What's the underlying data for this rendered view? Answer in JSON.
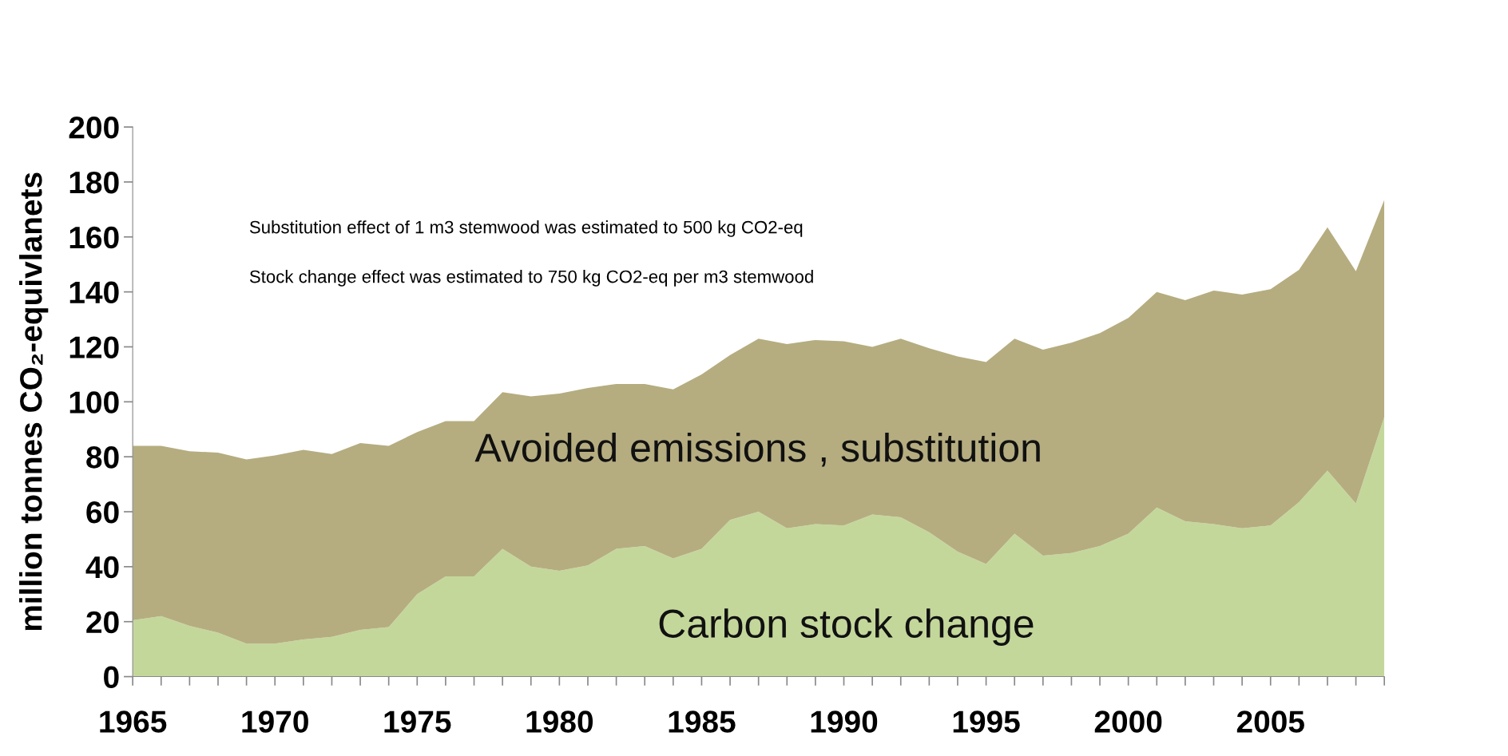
{
  "chart_data": {
    "type": "area",
    "stacked": true,
    "ylabel": "million tonnes CO₂-equivlanets",
    "annotations": [
      "Substitution effect of 1 m3 stemwood was estimated to 500 kg CO2-eq",
      "Stock change effect was estimated to 750 kg CO2-eq per m3 stemwood"
    ],
    "x": [
      1965,
      1966,
      1967,
      1968,
      1969,
      1970,
      1971,
      1972,
      1973,
      1974,
      1975,
      1976,
      1977,
      1978,
      1979,
      1980,
      1981,
      1982,
      1983,
      1984,
      1985,
      1986,
      1987,
      1988,
      1989,
      1990,
      1991,
      1992,
      1993,
      1994,
      1995,
      1996,
      1997,
      1998,
      1999,
      2000,
      2001,
      2002,
      2003,
      2004,
      2005,
      2006,
      2007,
      2008,
      2009
    ],
    "series": [
      {
        "name": "Carbon stock change",
        "color": "#c4d79b",
        "values": [
          20.5,
          22,
          18.5,
          16,
          12,
          12,
          13.5,
          14.5,
          17,
          18,
          30,
          36.5,
          36.5,
          46.5,
          40,
          38.5,
          40.5,
          46.5,
          47.5,
          43,
          46.5,
          57,
          60,
          54,
          55.5,
          55,
          59,
          58,
          52.5,
          45.5,
          41,
          52,
          44,
          45,
          47.5,
          52,
          61.5,
          56.5,
          55.5,
          54,
          55,
          63.5,
          75,
          63,
          94.5
        ]
      },
      {
        "name": "Avoided emissions , substitution",
        "color": "#b5ad80",
        "values": [
          63.5,
          62,
          63.5,
          65.5,
          67,
          68.5,
          69,
          66.5,
          68,
          66,
          59,
          56.5,
          56.5,
          57,
          62,
          64.5,
          64.5,
          60,
          59,
          61.5,
          63.5,
          60,
          63,
          67,
          67,
          67,
          61,
          65,
          67,
          71,
          73.5,
          71,
          75,
          76.5,
          77.5,
          78.5,
          78.5,
          80.5,
          85,
          85,
          86,
          84.5,
          88.5,
          84.5,
          79
        ]
      }
    ],
    "xlim": [
      1965,
      2009
    ],
    "xticks": [
      1965,
      {
        "value": 1966,
        "label": null
      },
      {
        "value": 1967,
        "label": null
      },
      {
        "value": 1968,
        "label": null
      },
      {
        "value": 1969,
        "label": null
      },
      1970,
      {
        "value": 1971,
        "label": null
      },
      {
        "value": 1972,
        "label": null
      },
      {
        "value": 1973,
        "label": null
      },
      {
        "value": 1974,
        "label": null
      },
      1975,
      {
        "value": 1976,
        "label": null
      },
      {
        "value": 1977,
        "label": null
      },
      {
        "value": 1978,
        "label": null
      },
      {
        "value": 1979,
        "label": null
      },
      1980,
      {
        "value": 1981,
        "label": null
      },
      {
        "value": 1982,
        "label": null
      },
      {
        "value": 1983,
        "label": null
      },
      {
        "value": 1984,
        "label": null
      },
      1985,
      {
        "value": 1986,
        "label": null
      },
      {
        "value": 1987,
        "label": null
      },
      {
        "value": 1988,
        "label": null
      },
      {
        "value": 1989,
        "label": null
      },
      1990,
      {
        "value": 1991,
        "label": null
      },
      {
        "value": 1992,
        "label": null
      },
      {
        "value": 1993,
        "label": null
      },
      {
        "value": 1994,
        "label": null
      },
      1995,
      {
        "value": 1996,
        "label": null
      },
      {
        "value": 1997,
        "label": null
      },
      {
        "value": 1998,
        "label": null
      },
      {
        "value": 1999,
        "label": null
      },
      2000,
      {
        "value": 2001,
        "label": null
      },
      {
        "value": 2002,
        "label": null
      },
      {
        "value": 2003,
        "label": null
      },
      {
        "value": 2004,
        "label": null
      },
      2005,
      {
        "value": 2006,
        "label": null
      },
      {
        "value": 2007,
        "label": null
      },
      {
        "value": 2008,
        "label": null
      },
      {
        "value": 2009,
        "label": null
      }
    ],
    "ylim": [
      0,
      200
    ],
    "yticks": [
      0,
      20,
      40,
      60,
      80,
      100,
      120,
      140,
      160,
      180,
      200
    ],
    "grid": false,
    "legend": false
  }
}
